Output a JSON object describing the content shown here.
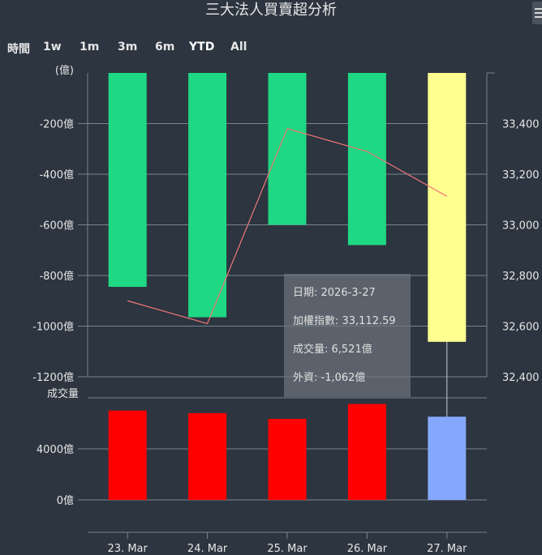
{
  "title": "三大法人買賣超分析",
  "range_selector": {
    "label": "時間",
    "buttons": [
      "1w",
      "1m",
      "3m",
      "6m",
      "YTD",
      "All"
    ],
    "selected": "YTD"
  },
  "colors": {
    "bar_default": "#1ed884",
    "bar_highlight": "#ffff90",
    "volume_default": "#ff0000",
    "volume_highlight": "#85a8ff",
    "index_line": "#f07878",
    "grid": "#7c848d"
  },
  "chart_data": {
    "type": "bar",
    "categories": [
      "23. Mar",
      "24. Mar",
      "25. Mar",
      "26. Mar",
      "27. Mar"
    ],
    "highlight_index": 4,
    "panels": [
      {
        "name": "foreign",
        "unit_label": "(億)",
        "ylim": [
          -1200,
          0
        ],
        "y_ticks": [
          -200,
          -400,
          -600,
          -800,
          -1000,
          -1200
        ],
        "y_tick_labels": [
          "-200億",
          "-400億",
          "-600億",
          "-800億",
          "-1000億",
          "-1200億"
        ],
        "values": [
          -845,
          -965,
          -600,
          -680,
          -1062
        ],
        "secondary_axis": {
          "ylim": [
            32400,
            33600
          ],
          "ticks": [
            33400,
            33200,
            33000,
            32800,
            32600,
            32400
          ],
          "tick_labels": [
            "33,400",
            "33,200",
            "33,000",
            "32,800",
            "32,600",
            "32,400"
          ],
          "line_values": [
            32700,
            32610,
            33380,
            33290,
            33112.59
          ]
        }
      },
      {
        "name": "volume",
        "title": "成交量",
        "ylim": [
          0,
          8000
        ],
        "y_ticks": [
          4000,
          0
        ],
        "y_tick_labels": [
          "4000億",
          "0億"
        ],
        "values": [
          7000,
          6800,
          6350,
          7520,
          6521
        ]
      }
    ],
    "tooltip": {
      "date": "日期: 2026-3-27",
      "index": "加權指數: 33,112.59",
      "volume": "成交量: 6,521億",
      "foreign": "外資: -1,062億"
    }
  }
}
